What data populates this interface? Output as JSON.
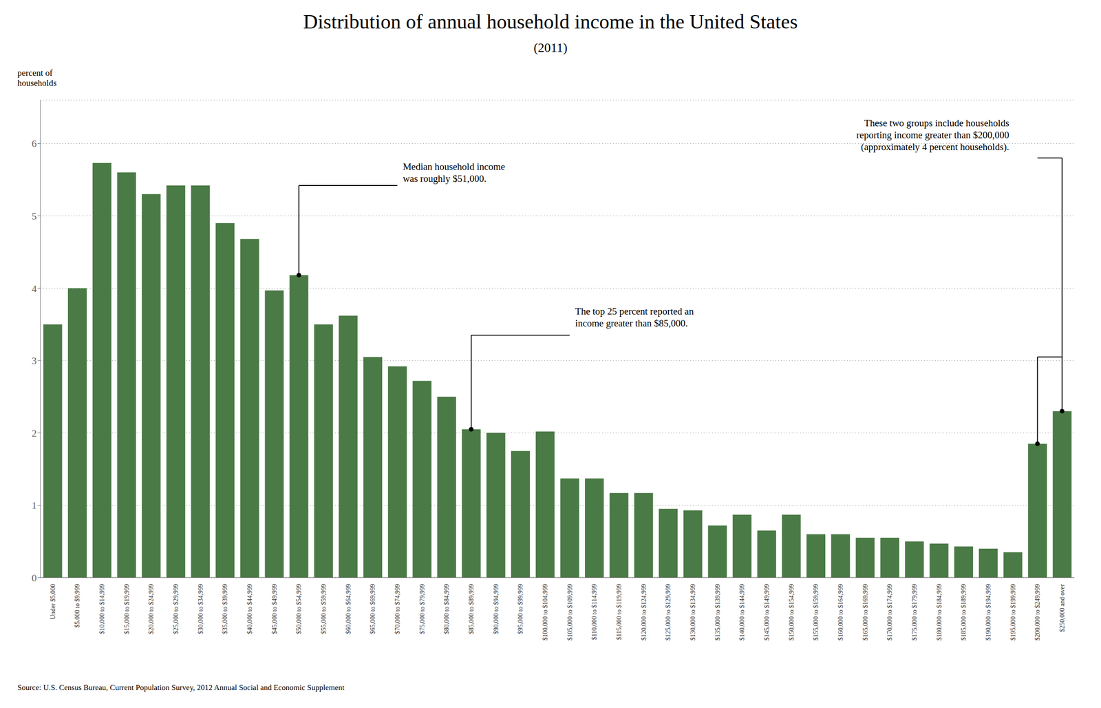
{
  "chart_data": {
    "type": "bar",
    "title": "Distribution of annual household income in the United States",
    "subtitle": "(2011)",
    "ylabel": "percent of\nhouseholds",
    "source": "Source: U.S. Census Bureau, Current Population Survey, 2012 Annual Social and Economic Supplement",
    "annotations": [
      "Median household income\nwas roughly $51,000.",
      "The top 25 percent reported an\nincome greater than $85,000.",
      "These two groups include households\nreporting income greater than $200,000\n(approximately 4 percent households)."
    ],
    "categories": [
      "Under $5,000",
      "$5,000 to $9,999",
      "$10,000 to $14,999",
      "$15,000 to $19,999",
      "$20,000 to $24,999",
      "$25,000 to $29,999",
      "$30,000 to $34,999",
      "$35,000 to $39,999",
      "$40,000 to $44,999",
      "$45,000 to $49,999",
      "$50,000 to $54,999",
      "$55,000 to $59,999",
      "$60,000 to $64,999",
      "$65,000 to $69,999",
      "$70,000 to $74,999",
      "$75,000 to $79,999",
      "$80,000 to $84,999",
      "$85,000 to $89,999",
      "$90,000 to $94,999",
      "$95,000 to $99,999",
      "$100,000 to $104,999",
      "$105,000 to $109,999",
      "$110,000 to $114,999",
      "$115,000 to $119,999",
      "$120,000 to $124,999",
      "$125,000 to $129,999",
      "$130,000 to $134,999",
      "$135,000 to $139,999",
      "$140,000 to $144,999",
      "$145,000 to $149,999",
      "$150,000 to $154,999",
      "$155,000 to $159,999",
      "$160,000 to $164,999",
      "$165,000 to $169,999",
      "$170,000 to $174,999",
      "$175,000 to $179,999",
      "$180,000 to $184,999",
      "$185,000 to $189,999",
      "$190,000 to $194,999",
      "$195,000 to $199,999",
      "$200,000 to $249,999",
      "$250,000 and over"
    ],
    "values": [
      3.5,
      4.0,
      5.73,
      5.6,
      5.3,
      5.42,
      5.42,
      4.9,
      4.68,
      3.97,
      4.18,
      3.5,
      3.62,
      3.05,
      2.92,
      2.72,
      2.5,
      2.05,
      2.0,
      1.75,
      2.02,
      1.37,
      1.37,
      1.17,
      1.17,
      0.95,
      0.93,
      0.72,
      0.87,
      0.65,
      0.87,
      0.6,
      0.6,
      0.55,
      0.55,
      0.5,
      0.47,
      0.43,
      0.4,
      0.35,
      1.85,
      2.3
    ],
    "color": "#4a7a45",
    "ylim": [
      0,
      6.6
    ],
    "yticks": [
      0,
      1,
      2,
      3,
      4,
      5,
      6
    ],
    "grid": true
  }
}
